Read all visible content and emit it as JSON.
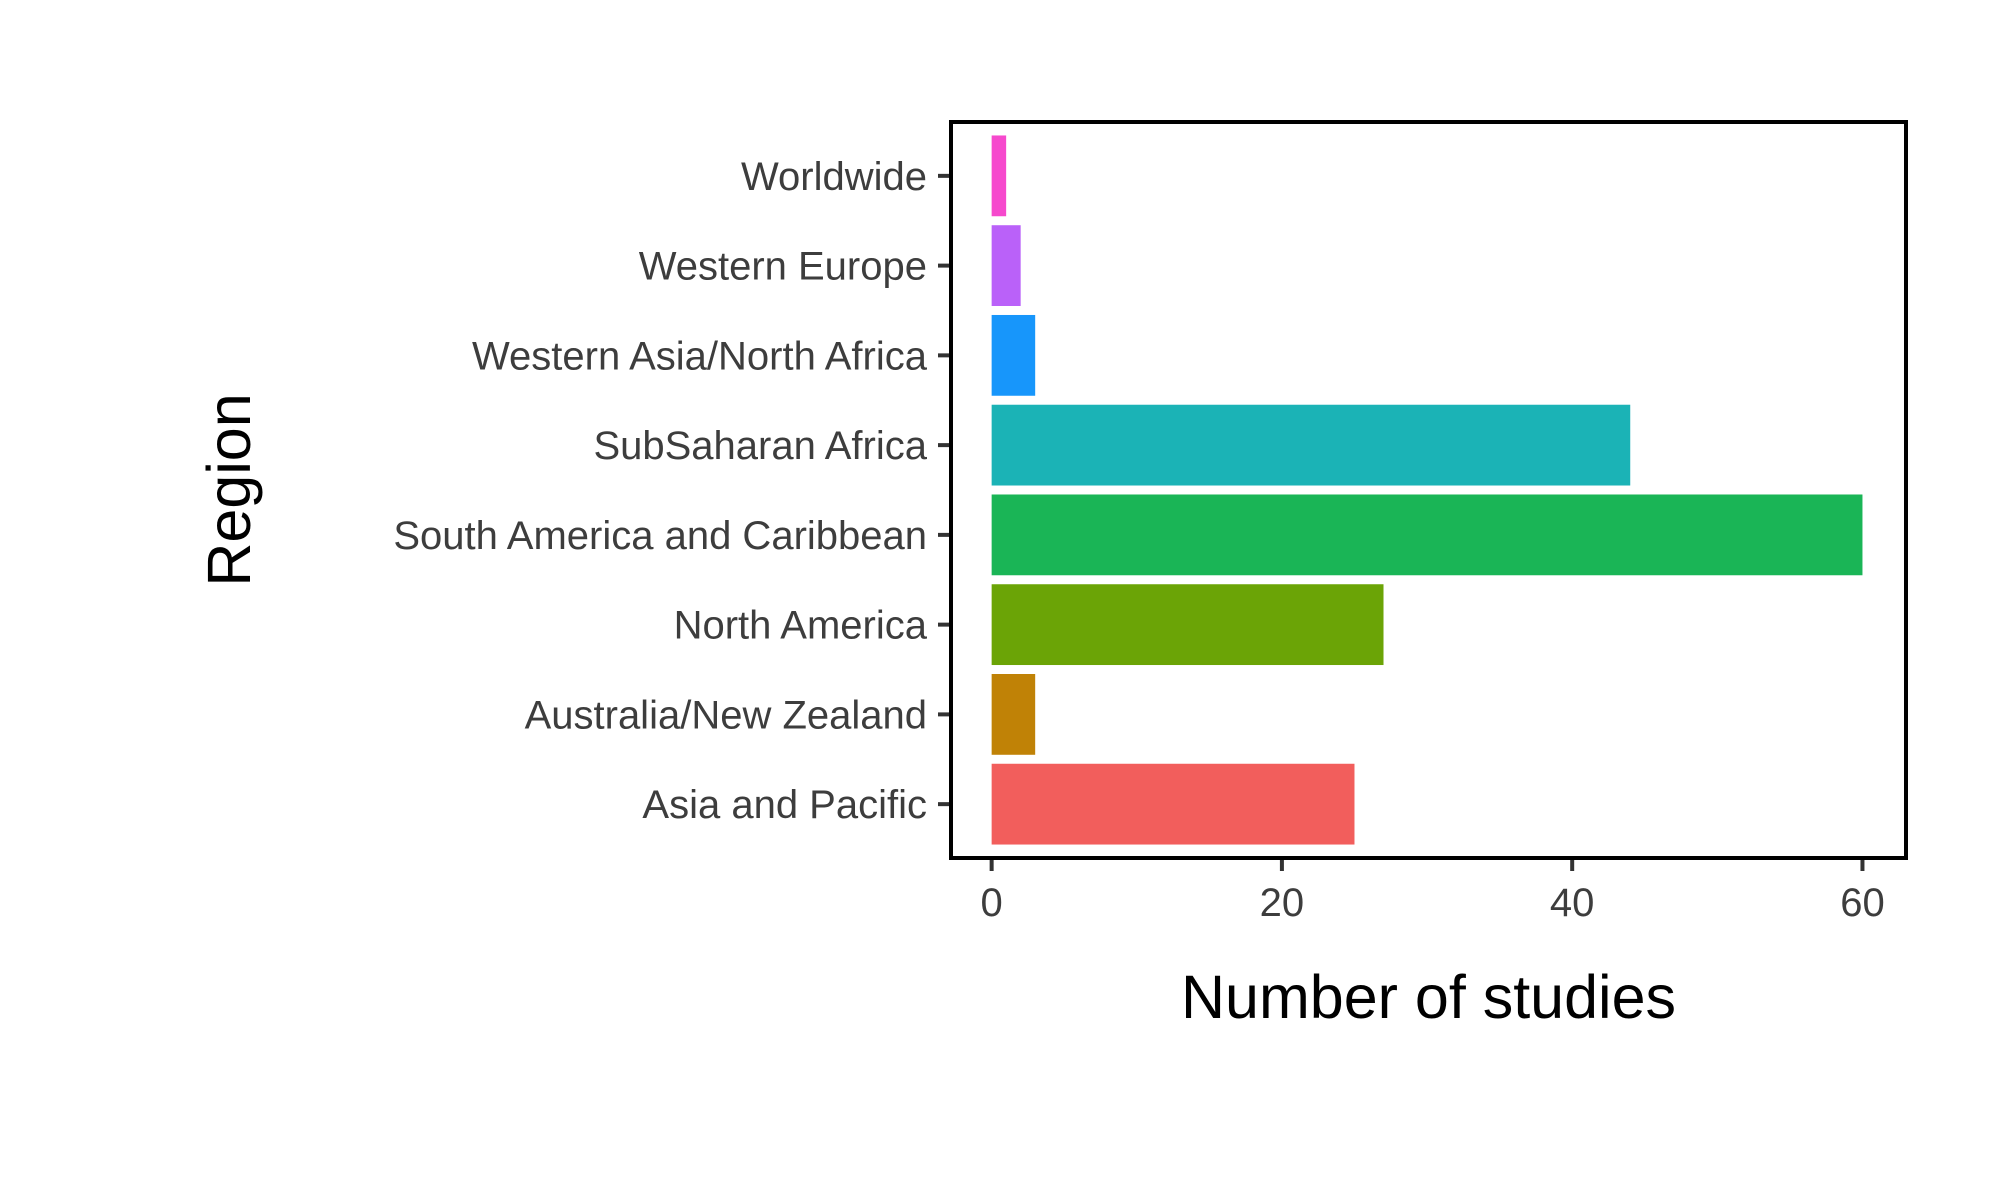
{
  "chart_data": {
    "type": "bar",
    "orientation": "horizontal",
    "categories": [
      "Asia and Pacific",
      "Australia/New Zealand",
      "North America",
      "South America and Caribbean",
      "SubSaharan Africa",
      "Western Asia/North Africa",
      "Western Europe",
      "Worldwide"
    ],
    "values": [
      25,
      3,
      27,
      60,
      44,
      3,
      2,
      1
    ],
    "colors": [
      "#F25E5C",
      "#C08206",
      "#6BA406",
      "#1AB556",
      "#1BB3B6",
      "#1796FB",
      "#BA61F9",
      "#F649CD"
    ],
    "xlabel": "Number of studies",
    "ylabel": "Region",
    "xlim": [
      -2.8,
      63
    ],
    "xticks": [
      0,
      20,
      40,
      60
    ],
    "xtick_labels": [
      "0",
      "20",
      "40",
      "60"
    ],
    "grid": false,
    "legend": "none"
  }
}
